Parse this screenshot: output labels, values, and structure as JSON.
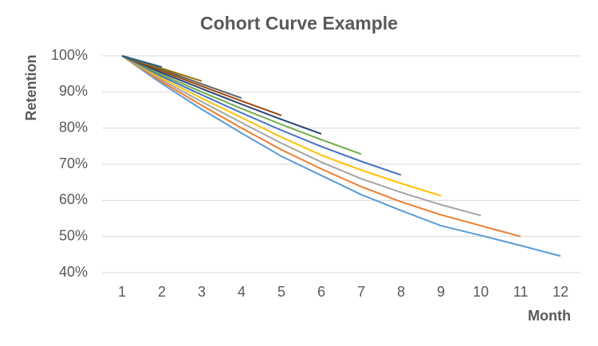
{
  "chart_data": {
    "type": "line",
    "title": "Cohort Curve Example",
    "y_label": "Retention",
    "x_label": "Month",
    "categories": [
      "1",
      "2",
      "3",
      "4",
      "5",
      "6",
      "7",
      "8",
      "9",
      "10",
      "11",
      "12"
    ],
    "ylim": [
      40,
      100
    ],
    "yticks": [
      {
        "value": 40,
        "label": "40%"
      },
      {
        "value": 50,
        "label": "50%"
      },
      {
        "value": 60,
        "label": "60%"
      },
      {
        "value": 70,
        "label": "70%"
      },
      {
        "value": 80,
        "label": "80%"
      },
      {
        "value": 90,
        "label": "90%"
      },
      {
        "value": 100,
        "label": "100%"
      }
    ],
    "grid": true,
    "series": [
      {
        "color": "#5b9bd5",
        "values": [
          100,
          92.3,
          85.2,
          78.6,
          72.2,
          66.9,
          61.6,
          57.2,
          53.0,
          50.3,
          47.5,
          44.6
        ]
      },
      {
        "color": "#ed7d31",
        "values": [
          100,
          92.8,
          86.3,
          80,
          74,
          68.7,
          63.8,
          59.6,
          56,
          53,
          50,
          null
        ]
      },
      {
        "color": "#a5a5a5",
        "values": [
          100,
          93.3,
          87.3,
          81.5,
          75.8,
          70.6,
          66,
          62.2,
          58.8,
          55.8,
          null,
          null
        ]
      },
      {
        "color": "#ffc000",
        "values": [
          100,
          93.8,
          88.3,
          82.9,
          77.5,
          72.5,
          68.4,
          64.7,
          61.3,
          null,
          null,
          null
        ]
      },
      {
        "color": "#4472c4",
        "values": [
          100,
          94.3,
          89.2,
          84.2,
          79.4,
          74.9,
          70.8,
          67,
          null,
          null,
          null,
          null
        ]
      },
      {
        "color": "#70ad47",
        "values": [
          100,
          94.8,
          90,
          85.4,
          81,
          76.8,
          72.8,
          null,
          null,
          null,
          null,
          null
        ]
      },
      {
        "color": "#264478",
        "values": [
          100,
          95.3,
          90.9,
          86.6,
          82.4,
          78.4,
          null,
          null,
          null,
          null,
          null,
          null
        ]
      },
      {
        "color": "#9e480e",
        "values": [
          100,
          95.8,
          91.6,
          87.5,
          83.5,
          null,
          null,
          null,
          null,
          null,
          null,
          null
        ]
      },
      {
        "color": "#636363",
        "values": [
          100,
          96.2,
          92.2,
          88.3,
          null,
          null,
          null,
          null,
          null,
          null,
          null,
          null
        ]
      },
      {
        "color": "#997300",
        "values": [
          100,
          96.5,
          93,
          null,
          null,
          null,
          null,
          null,
          null,
          null,
          null,
          null
        ]
      },
      {
        "color": "#255e91",
        "values": [
          100,
          96.9,
          null,
          null,
          null,
          null,
          null,
          null,
          null,
          null,
          null,
          null
        ]
      }
    ]
  }
}
